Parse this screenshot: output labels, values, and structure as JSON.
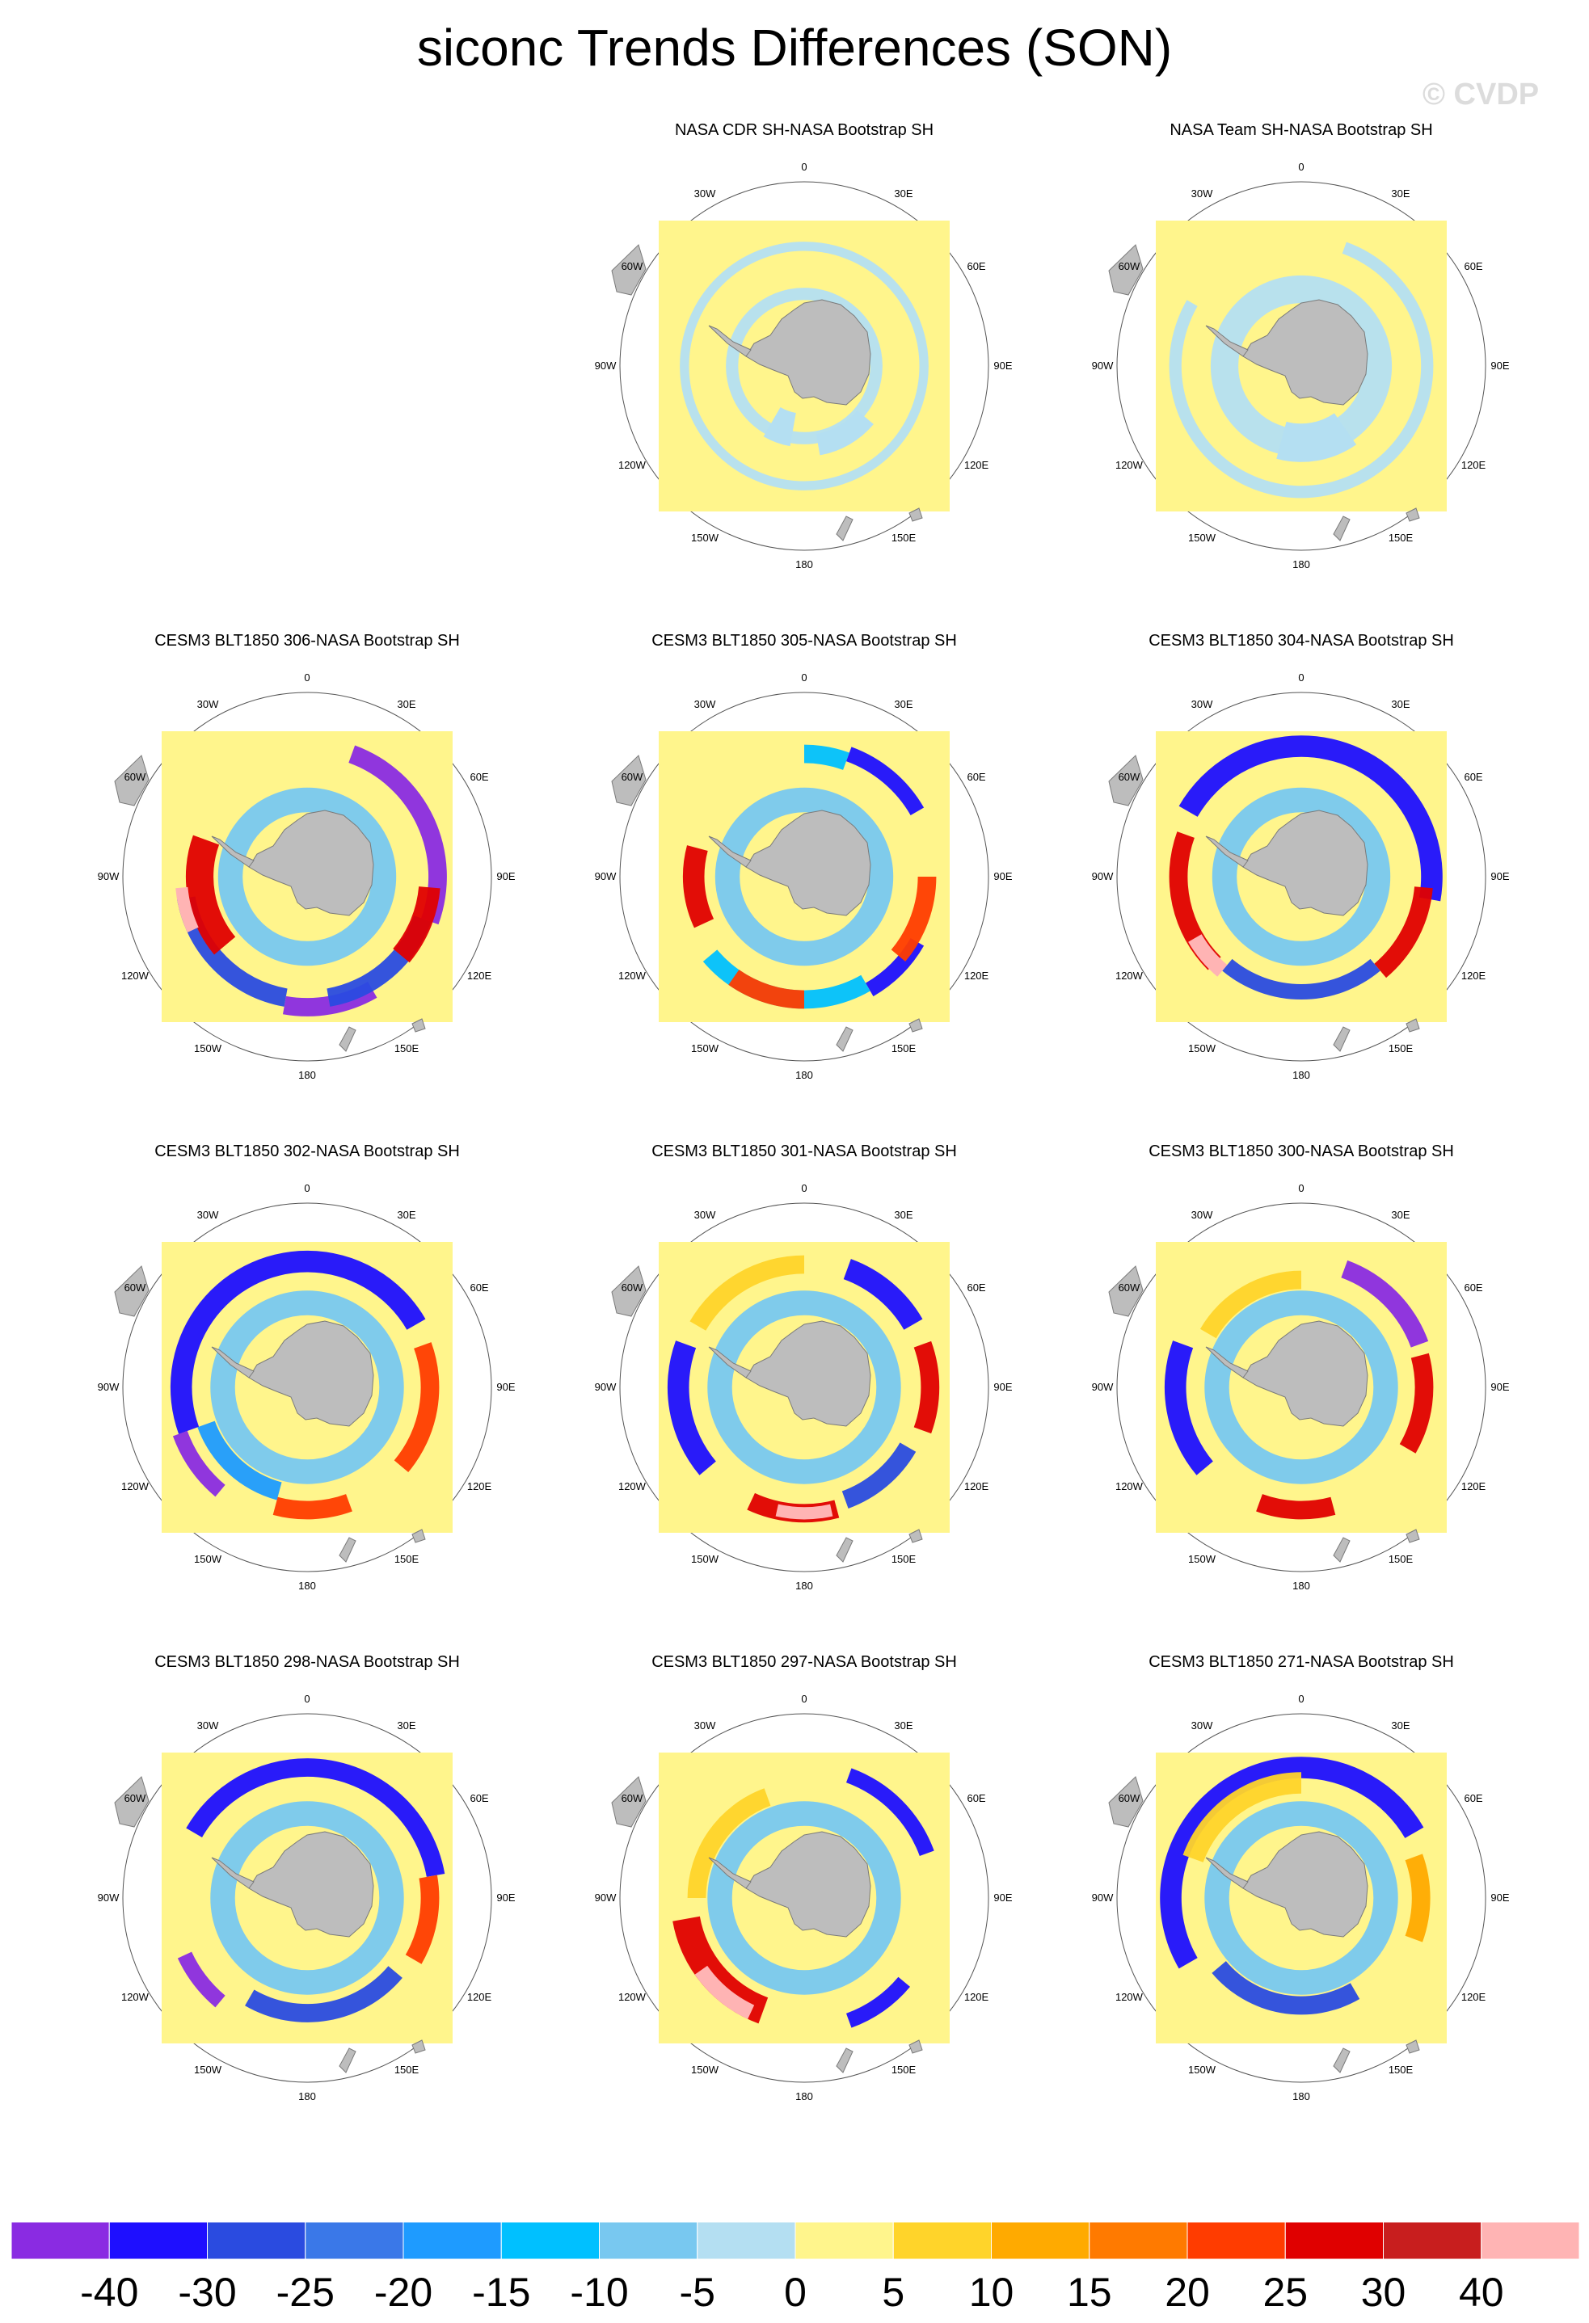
{
  "title": "siconc Trends Differences (SON)",
  "watermark": "© CVDP",
  "panels": [
    {
      "title": "NASA CDR SH-NASA Bootstrap SH",
      "row": 0,
      "col": 1,
      "style": "obs1"
    },
    {
      "title": "NASA Team SH-NASA Bootstrap SH",
      "row": 0,
      "col": 2,
      "style": "obs2"
    },
    {
      "title": "CESM3 BLT1850 306-NASA Bootstrap SH",
      "row": 1,
      "col": 0,
      "style": "m306"
    },
    {
      "title": "CESM3 BLT1850 305-NASA Bootstrap SH",
      "row": 1,
      "col": 1,
      "style": "m305"
    },
    {
      "title": "CESM3 BLT1850 304-NASA Bootstrap SH",
      "row": 1,
      "col": 2,
      "style": "m304"
    },
    {
      "title": "CESM3 BLT1850 302-NASA Bootstrap SH",
      "row": 2,
      "col": 0,
      "style": "m302"
    },
    {
      "title": "CESM3 BLT1850 301-NASA Bootstrap SH",
      "row": 2,
      "col": 1,
      "style": "m301"
    },
    {
      "title": "CESM3 BLT1850 300-NASA Bootstrap SH",
      "row": 2,
      "col": 2,
      "style": "m300"
    },
    {
      "title": "CESM3 BLT1850 298-NASA Bootstrap SH",
      "row": 3,
      "col": 0,
      "style": "m298"
    },
    {
      "title": "CESM3 BLT1850 297-NASA Bootstrap SH",
      "row": 3,
      "col": 1,
      "style": "m297"
    },
    {
      "title": "CESM3 BLT1850 271-NASA Bootstrap SH",
      "row": 3,
      "col": 2,
      "style": "m271"
    }
  ],
  "lon_labels": [
    "0",
    "30E",
    "60E",
    "90E",
    "120E",
    "150E",
    "180",
    "150W",
    "120W",
    "90W",
    "60W",
    "30W"
  ],
  "colorbar": {
    "labels": [
      "-40",
      "-30",
      "-25",
      "-20",
      "-15",
      "-10",
      "-5",
      "0",
      "5",
      "10",
      "15",
      "20",
      "25",
      "30",
      "40"
    ],
    "colors": [
      "#8a2be2",
      "#1e0fff",
      "#2a4be0",
      "#3a78e8",
      "#1e9bff",
      "#00c0ff",
      "#78c8f0",
      "#b4dff2",
      "#fff58c",
      "#ffd42a",
      "#ffaa00",
      "#ff7a00",
      "#ff3c00",
      "#e00000",
      "#c81e1e",
      "#ffb4b4"
    ]
  },
  "colors": {
    "background_fill": "#fff58c",
    "land": "#bdbdbd",
    "land_edge": "#7a7a7a"
  }
}
